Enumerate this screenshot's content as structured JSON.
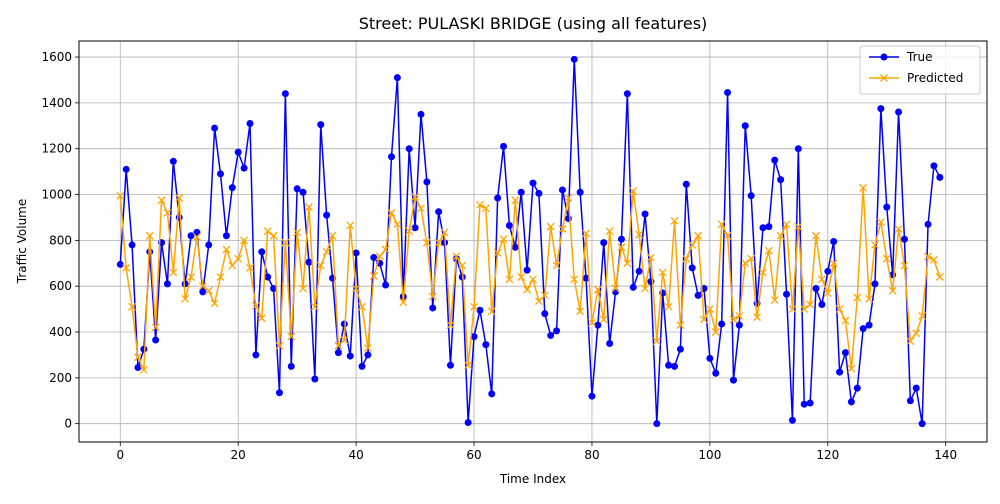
{
  "chart_data": {
    "type": "line",
    "title": "Street: PULASKI BRIDGE (using all features)",
    "xlabel": "Time Index",
    "ylabel": "Traffic Volume",
    "xlim": [
      -7,
      147
    ],
    "ylim": [
      -80,
      1670
    ],
    "x_ticks": [
      0,
      20,
      40,
      60,
      80,
      100,
      120,
      140
    ],
    "y_ticks": [
      0,
      200,
      400,
      600,
      800,
      1000,
      1200,
      1400,
      1600
    ],
    "grid": true,
    "legend_position": "top-right",
    "x": [
      0,
      1,
      2,
      3,
      4,
      5,
      6,
      7,
      8,
      9,
      10,
      11,
      12,
      13,
      14,
      15,
      16,
      17,
      18,
      19,
      20,
      21,
      22,
      23,
      24,
      25,
      26,
      27,
      28,
      29,
      30,
      31,
      32,
      33,
      34,
      35,
      36,
      37,
      38,
      39,
      40,
      41,
      42,
      43,
      44,
      45,
      46,
      47,
      48,
      49,
      50,
      51,
      52,
      53,
      54,
      55,
      56,
      57,
      58,
      59,
      60,
      61,
      62,
      63,
      64,
      65,
      66,
      67,
      68,
      69,
      70,
      71,
      72,
      73,
      74,
      75,
      76,
      77,
      78,
      79,
      80,
      81,
      82,
      83,
      84,
      85,
      86,
      87,
      88,
      89,
      90,
      91,
      92,
      93,
      94,
      95,
      96,
      97,
      98,
      99,
      100,
      101,
      102,
      103,
      104,
      105,
      106,
      107,
      108,
      109,
      110,
      111,
      112,
      113,
      114,
      115,
      116,
      117,
      118,
      119,
      120,
      121,
      122,
      123,
      124,
      125,
      126,
      127,
      128,
      129,
      130,
      131,
      132,
      133,
      134,
      135,
      136,
      137,
      138,
      139
    ],
    "series": [
      {
        "name": "True",
        "color": "#0000ff",
        "marker": "circle",
        "values": [
          695,
          1110,
          780,
          245,
          325,
          750,
          365,
          790,
          610,
          1145,
          900,
          610,
          820,
          835,
          575,
          780,
          1290,
          1090,
          820,
          1030,
          1185,
          1115,
          1310,
          300,
          750,
          640,
          590,
          135,
          1440,
          250,
          1025,
          1010,
          705,
          195,
          1305,
          910,
          635,
          310,
          435,
          295,
          745,
          250,
          300,
          725,
          700,
          605,
          1165,
          1510,
          555,
          1200,
          855,
          1350,
          1055,
          505,
          925,
          790,
          255,
          720,
          640,
          5,
          380,
          495,
          345,
          130,
          985,
          1210,
          865,
          770,
          1010,
          670,
          1050,
          1005,
          480,
          385,
          405,
          1020,
          895,
          1590,
          1010,
          635,
          120,
          430,
          790,
          350,
          575,
          805,
          1440,
          595,
          665,
          915,
          620,
          0,
          570,
          255,
          250,
          325,
          1045,
          680,
          560,
          590,
          285,
          220,
          435,
          1445,
          190,
          430,
          1300,
          995,
          525,
          855,
          860,
          1150,
          1065,
          565,
          15,
          1200,
          85,
          90,
          590,
          520,
          665,
          795,
          225,
          310,
          95,
          155,
          415,
          430,
          610,
          1375,
          945,
          650,
          1360,
          805,
          100,
          155,
          0,
          870,
          1125,
          1075
        ]
      },
      {
        "name": "Predicted",
        "color": "#ffa500",
        "marker": "x",
        "values": [
          995,
          680,
          510,
          290,
          235,
          820,
          420,
          975,
          920,
          660,
          985,
          545,
          640,
          815,
          600,
          580,
          525,
          640,
          760,
          690,
          720,
          800,
          680,
          515,
          460,
          840,
          820,
          340,
          790,
          380,
          835,
          590,
          945,
          510,
          690,
          750,
          820,
          340,
          365,
          865,
          590,
          510,
          330,
          645,
          730,
          760,
          920,
          870,
          530,
          840,
          990,
          940,
          790,
          555,
          790,
          835,
          430,
          730,
          690,
          255,
          510,
          955,
          940,
          490,
          745,
          805,
          630,
          975,
          640,
          585,
          630,
          535,
          560,
          860,
          690,
          850,
          985,
          630,
          490,
          830,
          440,
          585,
          455,
          840,
          590,
          770,
          700,
          1015,
          825,
          590,
          725,
          360,
          660,
          510,
          885,
          430,
          720,
          780,
          820,
          455,
          500,
          400,
          870,
          820,
          455,
          470,
          700,
          720,
          465,
          660,
          755,
          540,
          820,
          870,
          500,
          860,
          500,
          520,
          820,
          630,
          570,
          700,
          500,
          450,
          240,
          550,
          1030,
          545,
          780,
          880,
          720,
          580,
          850,
          690,
          360,
          395,
          470,
          730,
          715,
          640
        ]
      }
    ]
  }
}
